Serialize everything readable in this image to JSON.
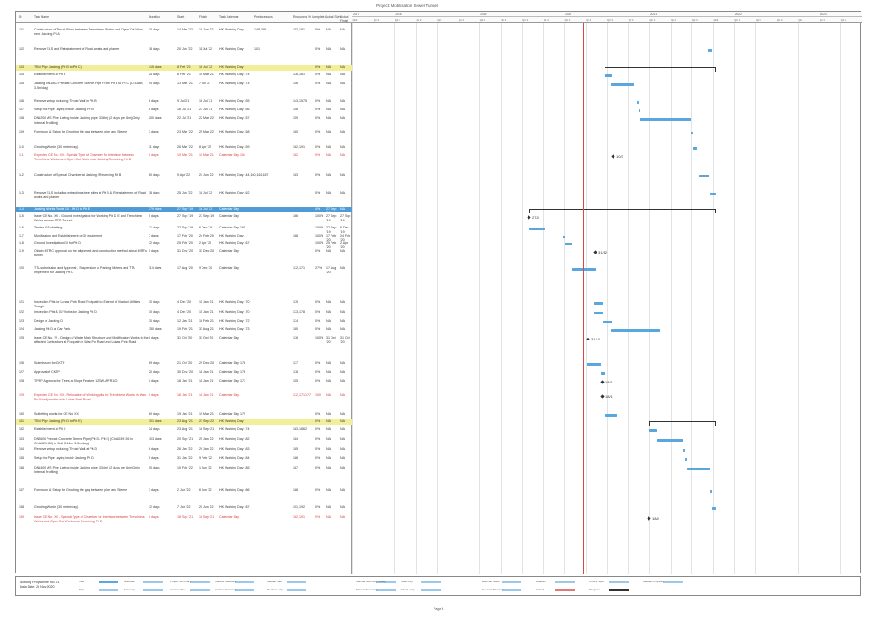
{
  "page_title": "Project: Mobilisation Sewer Tunnel",
  "columns": {
    "id": "ID",
    "name": "Task Name",
    "duration": "Duration",
    "start": "Start",
    "finish": "Finish",
    "calendar": "Task Calendar",
    "predecessors": "Predecessors",
    "resources": "Resources",
    "pct": "% Complete",
    "actual_start": "Actual Start",
    "actual_finish": "Actual Finish"
  },
  "years": [
    "2017",
    "2018",
    "2019",
    "2020",
    "2021",
    "2022",
    "2023"
  ],
  "quarters": [
    "Qtr 3, 2017",
    "Qtr 4, 2017",
    "Qtr 1, 2018",
    "Qtr 2, 2018",
    "Qtr 3, 2018",
    "Qtr 4, 2018",
    "Qtr 1, 2019",
    "Qtr 2, 2019",
    "Qtr 3, 2019",
    "Qtr 4, 2019",
    "Qtr 1, 2020",
    "Qtr 2, 2020",
    "Qtr 3, 2020",
    "Qtr 4, 2020",
    "Qtr 1, 2021",
    "Qtr 2, 2021",
    "Qtr 3, 2021",
    "Qtr 4, 2021",
    "Qtr 1, 2022",
    "Qtr 2, 2022",
    "Qtr 3, 2022",
    "Qtr 4, 2022",
    "Qtr 1, 2023",
    "Qtr 2, 2023"
  ],
  "rows": [
    {
      "id": "101",
      "name": "Construction of Thrust Block between Trenchless Works and Open Cut Work near Jacking Pit A",
      "duration": "30 days",
      "start": "14 Mar '22",
      "finish": "18 Jun '22",
      "calendar": "HK Working Day",
      "pred": "148,158",
      "res": "152,191",
      "pct": "0%",
      "as": "NA",
      "af": "NA",
      "type": "normal"
    },
    {
      "id": "102",
      "name": "Remove ELS and Reinstatement of Road works and planter",
      "duration": "18 days",
      "start": "20 Jun '22",
      "finish": "11 Jul '22",
      "calendar": "HK Working Day",
      "pred": "101",
      "res": "",
      "pct": "0%",
      "as": "NA",
      "af": "NA",
      "type": "normal"
    },
    {
      "id": "103",
      "name": "TBM Pipe Jacking (Pit B to Pit C)",
      "duration": "415 days",
      "start": "8 Feb '21",
      "finish": "16 Jul '22",
      "calendar": "HK Working Day",
      "pred": "",
      "res": "",
      "pct": "0%",
      "as": "NA",
      "af": "NA",
      "type": "summary"
    },
    {
      "id": "104",
      "name": "Establishment at Pit B",
      "duration": "24 days",
      "start": "8 Feb '21",
      "finish": "10 Mar '21",
      "calendar": "HK Working Day 174",
      "pred": "",
      "res": "136,161",
      "pct": "0%",
      "as": "NA",
      "af": "NA",
      "type": "normal"
    },
    {
      "id": "105",
      "name": "Jacking DN1800 Precast Concrete Sleeve Pipe From Pit B to Pit C (L=338m, 3.5m/day)",
      "duration": "94 days",
      "start": "13 Mar '21",
      "finish": "7 Jul '21",
      "calendar": "HK Working Day 174",
      "pred": "",
      "res": "156",
      "pct": "0%",
      "as": "NA",
      "af": "NA",
      "type": "normal"
    },
    {
      "id": "106",
      "name": "Remove setup including Thrust Wall in Pit B",
      "duration": "6 days",
      "start": "9 Jul '21",
      "finish": "16 Jul '21",
      "calendar": "HK Working Day 155",
      "pred": "",
      "res": "143,157,5",
      "pct": "0%",
      "as": "NA",
      "af": "NA",
      "type": "normal"
    },
    {
      "id": "107",
      "name": "Setup for Pipe Laying Inside Jacking Pit B",
      "duration": "6 days",
      "start": "16 Jul '21",
      "finish": "23 Jul '21",
      "calendar": "HK Working Day 156",
      "pred": "",
      "res": "158",
      "pct": "0%",
      "as": "NA",
      "af": "NA",
      "type": "normal"
    },
    {
      "id": "108",
      "name": "DN1200 MS Pipe Laying inside Jacking pipe (338m) (2 days per 6m)(Only Internal Profiling)",
      "duration": "200 days",
      "start": "22 Jul '21",
      "finish": "22 Mar '22",
      "calendar": "HK Working Day 157",
      "pred": "",
      "res": "159",
      "pct": "0%",
      "as": "NA",
      "af": "NA",
      "type": "normal"
    },
    {
      "id": "109",
      "name": "Formwork & Setup for Grouting the gap between pipe and Sleeve",
      "duration": "3 days",
      "start": "23 Mar '22",
      "finish": "25 Mar '22",
      "calendar": "HK Working Day 158",
      "pred": "",
      "res": "160",
      "pct": "0%",
      "as": "NA",
      "af": "NA",
      "type": "normal"
    },
    {
      "id": "110",
      "name": "Grouting Works (30 metre/day)",
      "duration": "11 days",
      "start": "26 Mar '22",
      "finish": "8 Apr '22",
      "calendar": "HK Working Day 159",
      "pred": "",
      "res": "162,191",
      "pct": "0%",
      "as": "NA",
      "af": "NA",
      "type": "normal"
    },
    {
      "id": "111",
      "name": "Expected CE No. XX - Special Type of Chamber for Interface between Trenchless Works and Open Cut Work near Jacking/Receiving Pit B",
      "duration": "0 days",
      "start": "10 Mar '21",
      "finish": "10 Mar '21",
      "calendar": "Calendar Day 154",
      "pred": "",
      "res": "162",
      "pct": "0%",
      "as": "NA",
      "af": "NA",
      "type": "red"
    },
    {
      "id": "112",
      "name": "Construction of Special Chamber at Jacking / Receiving Pit B",
      "duration": "60 days",
      "start": "9 Apr '22",
      "finish": "24 Jun '22",
      "calendar": "HK Working Day 144,160,161,187",
      "pred": "",
      "res": "163",
      "pct": "0%",
      "as": "NA",
      "af": "NA",
      "type": "normal"
    },
    {
      "id": "113",
      "name": "Remove ELS including extracting sheet piles at Pit B & Reinstatement of Road works and planter",
      "duration": "18 days",
      "start": "25 Jun '22",
      "finish": "16 Jul '22",
      "calendar": "HK Working Day 162",
      "pred": "",
      "res": "",
      "pct": "0%",
      "as": "NA",
      "af": "NA",
      "type": "normal"
    },
    {
      "id": "114",
      "name": "Jacking Works Route 10 - Pit D to Pit E",
      "duration": "379 days",
      "start": "27 Sep '19",
      "finish": "16 Jul '22",
      "calendar": "Calendar Day",
      "pred": "",
      "res": "",
      "pct": "4%",
      "as": "27 Sep '19",
      "af": "NA",
      "type": "blue-summary"
    },
    {
      "id": "115",
      "name": "Issue CE No. XX - Ground Investigation for Working Pit D, E and Trenchless Works across MTR Tunnel",
      "duration": "0 days",
      "start": "27 Sep '19",
      "finish": "27 Sep '19",
      "calendar": "Calendar Day",
      "pred": "",
      "res": "166",
      "pct": "100%",
      "as": "27 Sep '19",
      "af": "27 Sep '19",
      "type": "normal"
    },
    {
      "id": "116",
      "name": "Tender & Subletting",
      "duration": "71 days",
      "start": "27 Sep '19",
      "finish": "6 Dec '19",
      "calendar": "Calendar Day 165",
      "pred": "",
      "res": "",
      "pct": "100%",
      "as": "27 Sep '19",
      "af": "6 Dec '19",
      "type": "normal"
    },
    {
      "id": "117",
      "name": "Mobilization and Establishment of GI equipment",
      "duration": "7 days",
      "start": "17 Feb '20",
      "finish": "24 Feb '20",
      "calendar": "HK Working Day",
      "pred": "",
      "res": "168",
      "pct": "100%",
      "as": "17 Feb '20",
      "af": "24 Feb '20",
      "type": "normal"
    },
    {
      "id": "118",
      "name": "Ground Investigation GI for Pit D",
      "duration": "32 days",
      "start": "25 Feb '20",
      "finish": "2 Apr '20",
      "calendar": "HK Working Day 167",
      "pred": "",
      "res": "",
      "pct": "100%",
      "as": "25 Feb '20",
      "af": "2 Apr '20",
      "type": "normal"
    },
    {
      "id": "119",
      "name": "Obtain MTRC approval on the alignment and construction method about MTR's tunnel",
      "duration": "0 days",
      "start": "31 Dec '20",
      "finish": "31 Dec '20",
      "calendar": "Calendar Day",
      "pred": "",
      "res": "",
      "pct": "0%",
      "as": "NA",
      "af": "NA",
      "type": "normal"
    },
    {
      "id": "120",
      "name": "TTA submission and Approval , Suspension of Parking Meters and TTA Implement for Jacking Pit D",
      "duration": "114 days",
      "start": "17 Aug '20",
      "finish": "9 Dec '20",
      "calendar": "Calendar Day",
      "pred": "",
      "res": "172,171",
      "pct": "27%",
      "as": "17 Aug '20",
      "af": "NA",
      "type": "normal"
    },
    {
      "id": "121",
      "name": "Inspection Pits for Lohas Park Road Footpath to Extend of Viaduct Utilities Trough",
      "duration": "30 days",
      "start": "4 Dec '20",
      "finish": "15 Jan '21",
      "calendar": "HK Working Day 170",
      "pred": "",
      "res": "175",
      "pct": "0%",
      "as": "NA",
      "af": "NA",
      "type": "normal"
    },
    {
      "id": "122",
      "name": "Inspection Pits & GI Works for Jacking Pit D",
      "duration": "30 days",
      "start": "4 Dec '20",
      "finish": "15 Jan '21",
      "calendar": "HK Working Day 170",
      "pred": "",
      "res": "173,178",
      "pct": "0%",
      "as": "NA",
      "af": "NA",
      "type": "normal"
    },
    {
      "id": "123",
      "name": "Design of Jacking D",
      "duration": "30 days",
      "start": "12 Jan '21",
      "finish": "18 Feb '21",
      "calendar": "HK Working Day 172",
      "pred": "",
      "res": "174",
      "pct": "0%",
      "as": "NA",
      "af": "NA",
      "type": "normal"
    },
    {
      "id": "124",
      "name": "Jacking Pit D at Car Park",
      "duration": "150 days",
      "start": "19 Feb '21",
      "finish": "31 Aug '21",
      "calendar": "HK Working Day 173",
      "pred": "",
      "res": "180",
      "pct": "0%",
      "as": "NA",
      "af": "NA",
      "type": "normal"
    },
    {
      "id": "125",
      "name": "Issue CE No. ?? - Design of Water Main Structure and Modification Works to the affected Contractors at Footpath in Wan Po Road and Lohas Park Road",
      "duration": "0 days",
      "start": "31 Oct '20",
      "finish": "31 Oct '20",
      "calendar": "Calendar Day",
      "pred": "",
      "res": "176",
      "pct": "100%",
      "as": "31 Oct '20",
      "af": "31 Oct '20",
      "type": "normal"
    },
    {
      "id": "126",
      "name": "Submission for CKTP",
      "duration": "69 days",
      "start": "21 Oct '20",
      "finish": "29 Dec '20",
      "calendar": "Calendar Day 176",
      "pred": "",
      "res": "177",
      "pct": "0%",
      "as": "NA",
      "af": "NA",
      "type": "normal"
    },
    {
      "id": "127",
      "name": "Approval of CKTP",
      "duration": "20 days",
      "start": "30 Dec '20",
      "finish": "18 Jan '21",
      "calendar": "Calendar Day 176",
      "pred": "",
      "res": "178",
      "pct": "0%",
      "as": "NA",
      "af": "NA",
      "type": "normal"
    },
    {
      "id": "128",
      "name": "TPRP Approval for Trees at Slope Feature 12SW-A/FR100",
      "duration": "0 days",
      "start": "18 Jan '21",
      "finish": "18 Jan '21",
      "calendar": "Calendar Day 177",
      "pred": "",
      "res": "155",
      "pct": "0%",
      "as": "NA",
      "af": "NA",
      "type": "normal"
    },
    {
      "id": "129",
      "name": "Expected CE No. XX - Relocation of Working pits for Trenchless Works in Wan Po Road junction with Lohas Park Road",
      "duration": "0 days",
      "start": "18 Jan '21",
      "finish": "18 Jan '21",
      "calendar": "Calendar Day",
      "pred": "",
      "res": "172,171,177",
      "pct": "100",
      "as": "NA",
      "af": "NA",
      "type": "red"
    },
    {
      "id": "130",
      "name": "Subletting works for CE No. XX",
      "duration": "60 days",
      "start": "19 Jan '21",
      "finish": "19 Mar '21",
      "calendar": "Calendar Day 179",
      "pred": "",
      "res": "",
      "pct": "0%",
      "as": "NA",
      "af": "NA",
      "type": "normal"
    },
    {
      "id": "131",
      "name": "TBM Pipe Jacking (Pit D to Pit E)",
      "duration": "301 days",
      "start": "23 Aug '21",
      "finish": "21 Sep '22",
      "calendar": "HK Working Day",
      "pred": "",
      "res": "",
      "pct": "0%",
      "as": "NA",
      "af": "NA",
      "type": "summary"
    },
    {
      "id": "132",
      "name": "Establishment at Pit D",
      "duration": "24 days",
      "start": "23 Aug '21",
      "finish": "18 Sep '21",
      "calendar": "HK Working Day 174",
      "pred": "",
      "res": "183,186,2",
      "pct": "0%",
      "as": "NA",
      "af": "NA",
      "type": "normal"
    },
    {
      "id": "133",
      "name": "DN2600 Precast Concrete Sleeve Pipe (Pit D - Pit E) (Ch.A039+26 to Ch.A021+80) in Soil (214m, 3.5m/day)",
      "duration": "103 days",
      "start": "20 Sep '21",
      "finish": "25 Jan '22",
      "calendar": "HK Working Day 182",
      "pred": "",
      "res": "184",
      "pct": "0%",
      "as": "NA",
      "af": "NA",
      "type": "normal"
    },
    {
      "id": "134",
      "name": "Remove setup including Thrust Wall at Pit D",
      "duration": "6 days",
      "start": "26 Jan '22",
      "finish": "29 Jan '22",
      "calendar": "HK Working Day 183",
      "pred": "",
      "res": "185",
      "pct": "0%",
      "as": "NA",
      "af": "NA",
      "type": "normal"
    },
    {
      "id": "135",
      "name": "Setup for Pipe Laying inside Jacking Pit D",
      "duration": "5 days",
      "start": "31 Jan '22",
      "finish": "9 Feb '22",
      "calendar": "HK Working Day 184",
      "pred": "",
      "res": "186",
      "pct": "0%",
      "as": "NA",
      "af": "NA",
      "type": "normal"
    },
    {
      "id": "136",
      "name": "DN1400 MS Pipe Laying inside Jacking pipe (334m) (2 days per 6m)(Only Internal Profiling)",
      "duration": "90 days",
      "start": "10 Feb '22",
      "finish": "1 Jun '22",
      "calendar": "HK Working Day 185",
      "pred": "",
      "res": "187",
      "pct": "0%",
      "as": "NA",
      "af": "NA",
      "type": "normal"
    },
    {
      "id": "137",
      "name": "Formwork & Setup for Grouting the gap between pipe and Sleeve",
      "duration": "3 days",
      "start": "2 Jun '22",
      "finish": "6 Jun '22",
      "calendar": "HK Working Day 186",
      "pred": "",
      "res": "188",
      "pct": "0%",
      "as": "NA",
      "af": "NA",
      "type": "normal"
    },
    {
      "id": "138",
      "name": "Grouting Works (30 metre/day)",
      "duration": "12 days",
      "start": "7 Jun '22",
      "finish": "20 Jun '22",
      "calendar": "HK Working Day 187",
      "pred": "",
      "res": "191,192",
      "pct": "0%",
      "as": "NA",
      "af": "NA",
      "type": "normal"
    },
    {
      "id": "139",
      "name": "Issue CE No. XX - Special Type of Chamber for Interface between Trenchless Works and Open Cut Work near Receiving Pit E",
      "duration": "0 days",
      "start": "18 Sep '21",
      "finish": "18 Sep '21",
      "calendar": "Calendar Day",
      "pred": "",
      "res": "162,191",
      "pct": "0%",
      "as": "NA",
      "af": "NA",
      "type": "red"
    }
  ],
  "milestone_labels": {
    "m111": "10/3",
    "m115": "27/9",
    "m119": "31/12",
    "m125": "31/10",
    "m128": "18/1",
    "m129": "18/1",
    "m139": "18/9"
  },
  "legend": {
    "project": "Working Programme No. 21",
    "date": "Data Date: 26 Nov 2020",
    "items": [
      "Task",
      "Split",
      "Milestone",
      "Summary",
      "Project Summary",
      "Inactive Task",
      "Inactive Milestone",
      "Inactive Summary",
      "Manual Task",
      "Duration-only",
      "Manual Summary Rollup",
      "Manual Summary",
      "Start-only",
      "Finish-only",
      "External Tasks",
      "External Milestone",
      "Deadline",
      "Critical",
      "Critical Split",
      "Progress",
      "Manual Progress"
    ]
  },
  "page_number": "Page 4",
  "colors": {
    "task_bar": "#5aa7df",
    "summary_row": "#f2ef9a",
    "blue_summary_row": "#4f9bd6",
    "status_line": "#d94848",
    "red_text": "#d63b3b"
  }
}
